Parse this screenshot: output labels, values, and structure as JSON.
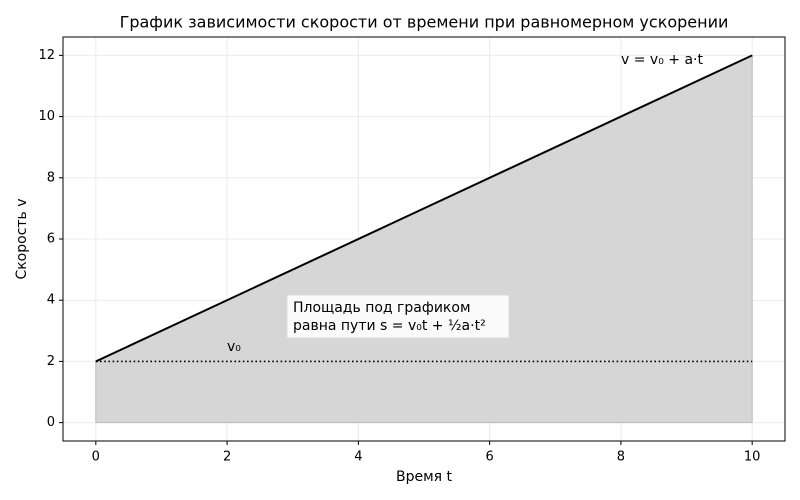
{
  "chart_data": {
    "type": "line",
    "title": "График зависимости скорости от времени при равномерном ускорении",
    "xlabel": "Время t",
    "ylabel": "Скорость v",
    "x": [
      0,
      10
    ],
    "series": [
      {
        "color": "#000000",
        "values": [
          2,
          12
        ],
        "fill": "#d6d6d6",
        "style": "solid"
      },
      {
        "color": "#000000",
        "values": [
          2,
          2
        ],
        "style": "dotted"
      }
    ],
    "xlim": [
      -0.5,
      10.5
    ],
    "ylim": [
      -0.6,
      12.6
    ],
    "xticks": [
      0,
      2,
      4,
      6,
      8,
      10
    ],
    "yticks": [
      0,
      2,
      4,
      6,
      8,
      10,
      12
    ],
    "grid": true,
    "annotations": [
      "v = v₀ + a·t",
      "v₀"
    ],
    "note": [
      "Площадь под графиком",
      "равна пути s = v₀t + ½a·t²"
    ]
  }
}
